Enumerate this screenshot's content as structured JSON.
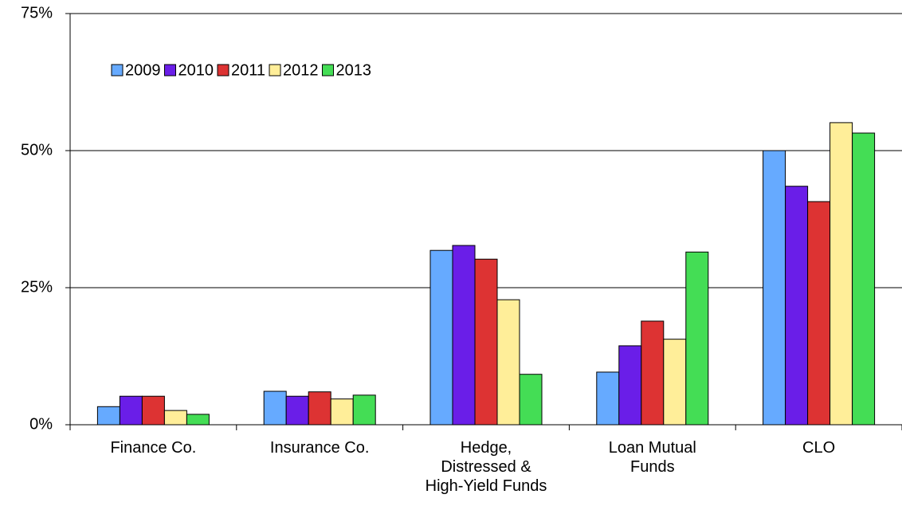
{
  "chart_data": {
    "type": "bar",
    "categories": [
      "Finance Co.",
      "Insurance Co.",
      "Hedge,\nDistressed &\nHigh-Yield Funds",
      "Loan Mutual\nFunds",
      "CLO"
    ],
    "series": [
      {
        "name": "2009",
        "color": "#66aaff",
        "values": [
          3.3,
          6.1,
          31.8,
          9.6,
          50
        ]
      },
      {
        "name": "2010",
        "color": "#6a1ee8",
        "values": [
          5.2,
          5.2,
          32.7,
          14.4,
          43.5
        ]
      },
      {
        "name": "2011",
        "color": "#dd3333",
        "values": [
          5.2,
          6.0,
          30.2,
          18.9,
          40.7
        ]
      },
      {
        "name": "2012",
        "color": "#ffee99",
        "values": [
          2.6,
          4.7,
          22.8,
          15.6,
          55.1
        ]
      },
      {
        "name": "2013",
        "color": "#44dd55",
        "values": [
          1.9,
          5.4,
          9.2,
          31.5,
          53.2
        ]
      }
    ],
    "ylim": [
      0,
      75
    ],
    "yticks": [
      {
        "value": 0,
        "label": "0%"
      },
      {
        "value": 25,
        "label": "25%"
      },
      {
        "value": 50,
        "label": "50%"
      },
      {
        "value": 75,
        "label": "75%"
      }
    ],
    "grid": true,
    "legend": "top-left"
  }
}
